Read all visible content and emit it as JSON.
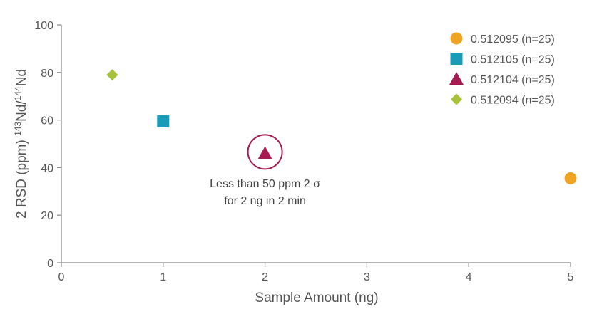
{
  "chart_data": {
    "type": "scatter",
    "xlabel": "Sample Amount (ng)",
    "ylabel": {
      "prefix": "2 RSD (ppm) ",
      "sup1": "143",
      "mid": "Nd/",
      "sup2": "144",
      "suffix": "Nd"
    },
    "xlim": [
      0,
      5
    ],
    "ylim": [
      0,
      100
    ],
    "xticks": [
      "0",
      "1",
      "2",
      "3",
      "4",
      "5"
    ],
    "yticks": [
      "0",
      "20",
      "40",
      "60",
      "80",
      "100"
    ],
    "grid": false,
    "legend_position": "top-right",
    "series": [
      {
        "name": "0.512095 (n=25)",
        "marker": "circle",
        "color": "#f0a424",
        "x": [
          5.0
        ],
        "y": [
          35.5
        ]
      },
      {
        "name": "0.512105 (n=25)",
        "marker": "square",
        "color": "#1a9cb8",
        "x": [
          1.0
        ],
        "y": [
          59.5
        ]
      },
      {
        "name": "0.512104 (n=25)",
        "marker": "triangle",
        "color": "#a51c52",
        "x": [
          2.0
        ],
        "y": [
          46.0
        ]
      },
      {
        "name": "0.512094 (n=25)",
        "marker": "diamond",
        "color": "#a6c23a",
        "x": [
          0.5
        ],
        "y": [
          79.0
        ]
      }
    ],
    "annotation": {
      "lines": [
        "Less than 50 ppm 2 σ",
        "for 2 ng in 2 min"
      ],
      "target_x": 2.0,
      "target_y": 46.0,
      "ring_color": "#a51c52"
    }
  }
}
